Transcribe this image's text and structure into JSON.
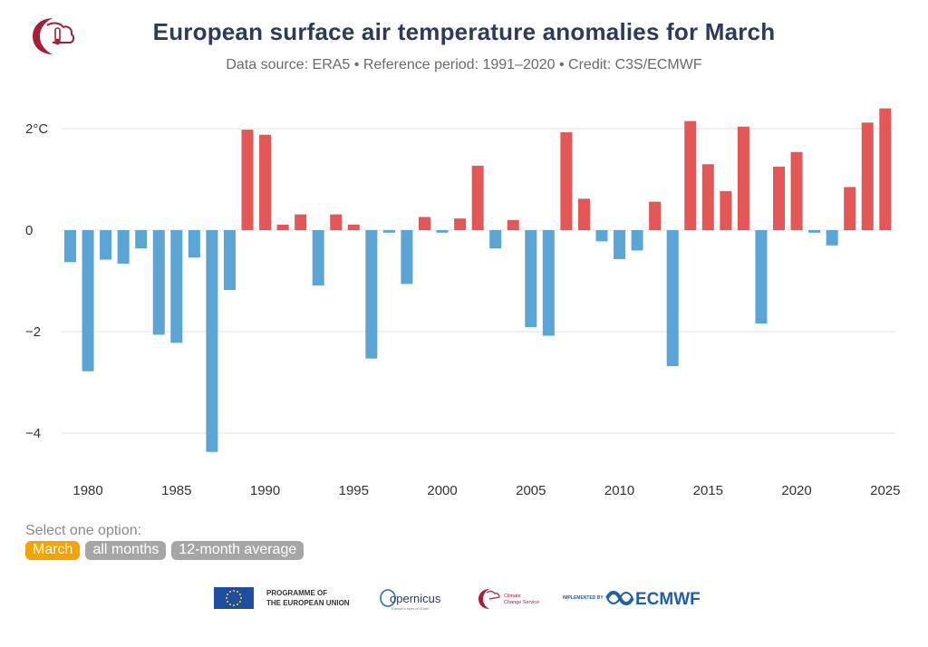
{
  "header": {
    "title": "European surface air temperature anomalies for March",
    "subtitle": "Data source: ERA5 • Reference period: 1991–2020 • Credit: C3S/ECMWF"
  },
  "colors": {
    "positive": "#e45757",
    "negative": "#5ba4d6",
    "title": "#2e3a59",
    "active_option": "#f5a300",
    "inactive_option": "#a6a6a6"
  },
  "controls": {
    "label": "Select one option:",
    "options": [
      "March",
      "all months",
      "12-month average"
    ],
    "selected": "March"
  },
  "footer": {
    "eu_text_line1": "PROGRAMME OF",
    "eu_text_line2": "THE EUROPEAN UNION",
    "copernicus": "opernicus",
    "copernicus_tagline": "Europe's eyes on Earth",
    "c3s_line1": "Climate",
    "c3s_line2": "Change Service",
    "implemented_by": "IMPLEMENTED BY",
    "ecmwf": "ECMWF"
  },
  "chart_data": {
    "type": "bar",
    "title": "European surface air temperature anomalies for March",
    "subtitle": "Data source: ERA5 • Reference period: 1991–2020 • Credit: C3S/ECMWF",
    "xlabel": "",
    "ylabel": "",
    "x_ticks": [
      1980,
      1985,
      1990,
      1995,
      2000,
      2005,
      2010,
      2015,
      2020,
      2025
    ],
    "y_ticks": [
      {
        "value": 2,
        "label": "2°C"
      },
      {
        "value": 0,
        "label": "0"
      },
      {
        "value": -2,
        "label": "−2"
      },
      {
        "value": -4,
        "label": "−4"
      }
    ],
    "ylim": [
      -4.7,
      2.55
    ],
    "grid": true,
    "legend": "none",
    "categories": [
      1979,
      1980,
      1981,
      1982,
      1983,
      1984,
      1985,
      1986,
      1987,
      1988,
      1989,
      1990,
      1991,
      1992,
      1993,
      1994,
      1995,
      1996,
      1997,
      1998,
      1999,
      2000,
      2001,
      2002,
      2003,
      2004,
      2005,
      2006,
      2007,
      2008,
      2009,
      2010,
      2011,
      2012,
      2013,
      2014,
      2015,
      2016,
      2017,
      2018,
      2019,
      2020,
      2021,
      2022,
      2023,
      2024,
      2025
    ],
    "values": [
      -0.63,
      -2.78,
      -0.58,
      -0.66,
      -0.36,
      -2.06,
      -2.22,
      -0.54,
      -4.37,
      -1.18,
      1.98,
      1.88,
      0.11,
      0.31,
      -1.09,
      0.31,
      0.11,
      -2.53,
      -0.05,
      -1.06,
      0.26,
      -0.05,
      0.23,
      1.27,
      -0.36,
      0.2,
      -1.91,
      -2.08,
      1.93,
      0.62,
      -0.22,
      -0.57,
      -0.4,
      0.56,
      -2.68,
      2.15,
      1.3,
      0.77,
      2.04,
      -1.84,
      1.25,
      1.54,
      -0.05,
      -0.3,
      0.85,
      2.12,
      2.4
    ]
  }
}
